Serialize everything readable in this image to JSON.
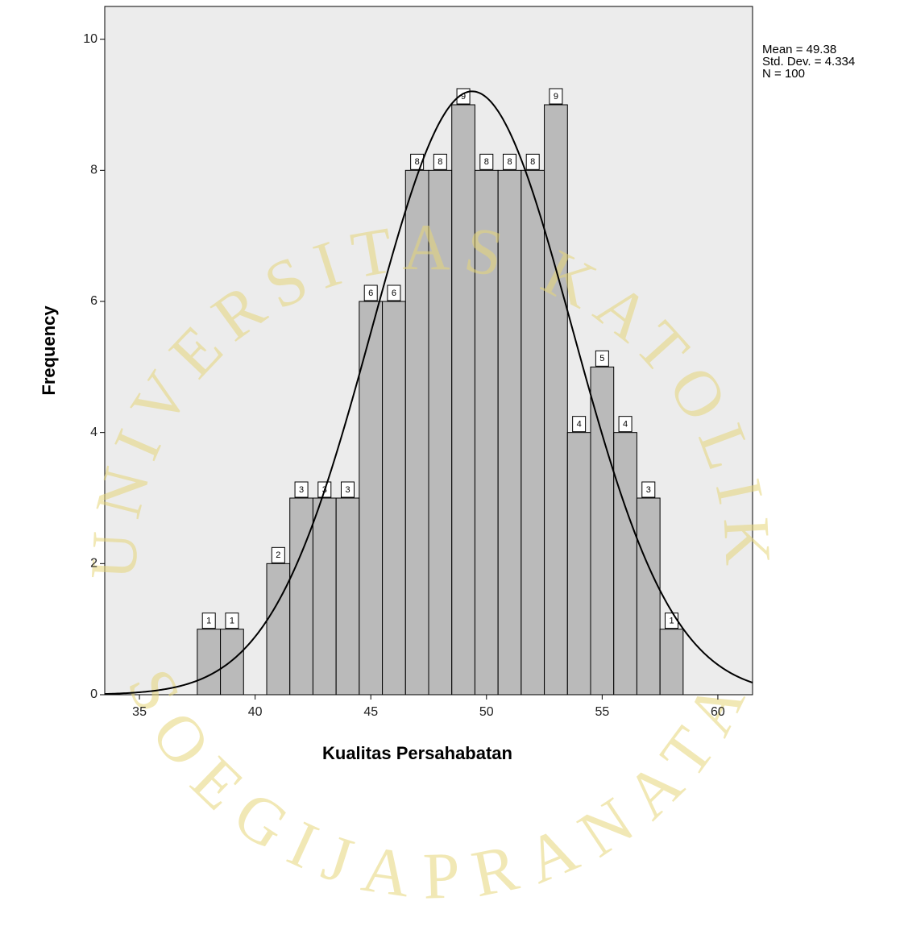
{
  "chart_data": {
    "type": "histogram",
    "x_label": "Kualitas Persahabatan",
    "y_label": "Frequency",
    "bins": [
      37.5,
      38.5,
      39.5,
      40.5,
      41.5,
      42.5,
      43.5,
      44.5,
      45.5,
      46.5,
      47.5,
      48.5,
      49.5,
      50.5,
      51.5,
      52.5,
      53.5,
      54.5,
      55.5,
      56.5,
      57.5,
      58.5
    ],
    "values": [
      1,
      1,
      0,
      2,
      3,
      3,
      3,
      6,
      6,
      8,
      8,
      9,
      8,
      8,
      8,
      9,
      4,
      5,
      4,
      3,
      1
    ],
    "color": "#a9a9a9",
    "xlim": [
      33.5,
      61.5
    ],
    "xticks": [
      35,
      40,
      45,
      50,
      55,
      60
    ],
    "ylim": [
      0,
      10.5
    ],
    "yticks": [
      0,
      2,
      4,
      6,
      8,
      10
    ],
    "stats": [
      {
        "label": "Mean =",
        "value": 49.38
      },
      {
        "label": "Std. Dev. =",
        "value": 4.334
      },
      {
        "label": "N =",
        "value": 100
      }
    ],
    "normal_curve": true
  },
  "watermark": {
    "top": "UNIVERSITAS KATOLIK",
    "bottom": "SOEGIJAPRANATA"
  }
}
